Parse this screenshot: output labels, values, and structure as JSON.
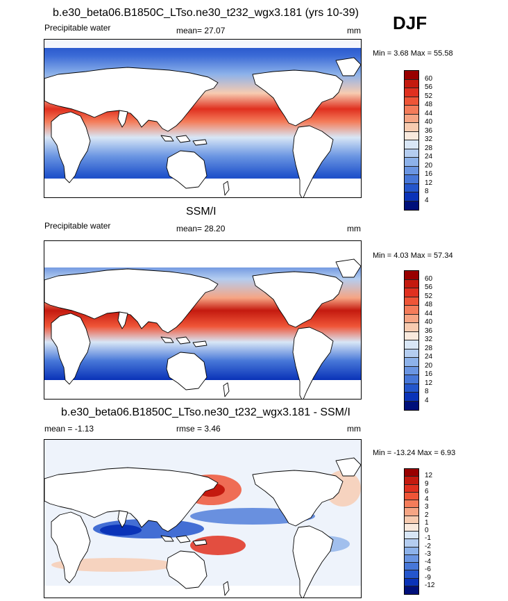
{
  "season": "DJF",
  "panels": [
    {
      "title": "b.e30_beta06.B1850C_LTso.ne30_t232_wgx3.181 (yrs 10-39)",
      "left_label": "Precipitable water",
      "center_label": "mean=  27.07",
      "units": "mm",
      "minmax": "Min =   3.68 Max =  55.58",
      "colorbar": {
        "labels": [
          "60",
          "56",
          "52",
          "48",
          "44",
          "40",
          "36",
          "32",
          "28",
          "24",
          "20",
          "16",
          "12",
          "8",
          "4"
        ],
        "colors": [
          "#990000",
          "#c41a0f",
          "#e0301f",
          "#ef5537",
          "#f47c5a",
          "#f6a584",
          "#f7cbb0",
          "#f9e9dd",
          "#d8e6f6",
          "#b4cdf0",
          "#8db2ea",
          "#6a95e2",
          "#4777d8",
          "#2456cc",
          "#0a33b8",
          "#00107a"
        ]
      }
    },
    {
      "title": "SSM/I",
      "left_label": "Precipitable water",
      "center_label": "mean=  28.20",
      "units": "mm",
      "minmax": "Min =   4.03 Max =  57.34",
      "colorbar": {
        "labels": [
          "60",
          "56",
          "52",
          "48",
          "44",
          "40",
          "36",
          "32",
          "28",
          "24",
          "20",
          "16",
          "12",
          "8",
          "4"
        ],
        "colors": [
          "#990000",
          "#c41a0f",
          "#e0301f",
          "#ef5537",
          "#f47c5a",
          "#f6a584",
          "#f7cbb0",
          "#f9e9dd",
          "#d8e6f6",
          "#b4cdf0",
          "#8db2ea",
          "#6a95e2",
          "#4777d8",
          "#2456cc",
          "#0a33b8",
          "#00107a"
        ]
      }
    },
    {
      "title": "b.e30_beta06.B1850C_LTso.ne30_t232_wgx3.181 - SSM/I",
      "left_label": "mean =  -1.13",
      "center_label": "rmse =   3.46",
      "units": "mm",
      "minmax": "Min = -13.24 Max =   6.93",
      "colorbar": {
        "labels": [
          "12",
          "9",
          "6",
          "4",
          "3",
          "2",
          "1",
          "0",
          "-1",
          "-2",
          "-3",
          "-4",
          "-6",
          "-9",
          "-12"
        ],
        "colors": [
          "#990000",
          "#c41a0f",
          "#e0301f",
          "#ef5537",
          "#f47c5a",
          "#f6a584",
          "#f7cbb0",
          "#f9e9dd",
          "#d8e6f6",
          "#b4cdf0",
          "#8db2ea",
          "#6a95e2",
          "#4777d8",
          "#2456cc",
          "#0a33b8",
          "#00107a"
        ]
      }
    }
  ]
}
